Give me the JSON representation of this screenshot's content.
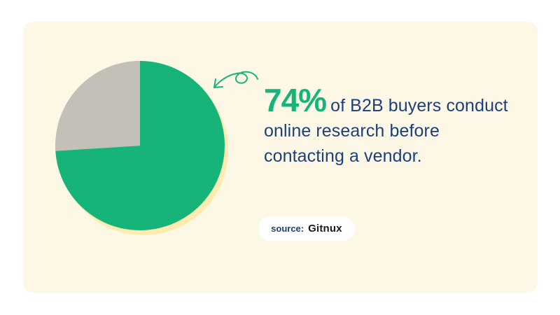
{
  "chart_data": {
    "type": "pie",
    "slices": [
      {
        "value": 74,
        "color": "#17b47a"
      },
      {
        "value": 26,
        "color": "#c3c1b7"
      }
    ],
    "shadow_color": "#fdebb0"
  },
  "headline": {
    "percent": "74%",
    "text": "of B2B buyers conduct online research before contacting a vendor."
  },
  "source": {
    "label": "source:",
    "brand": "Gitnux"
  },
  "colors": {
    "background": "#fdf8e6",
    "accent": "#17b47a",
    "text": "#1d3f7a"
  }
}
